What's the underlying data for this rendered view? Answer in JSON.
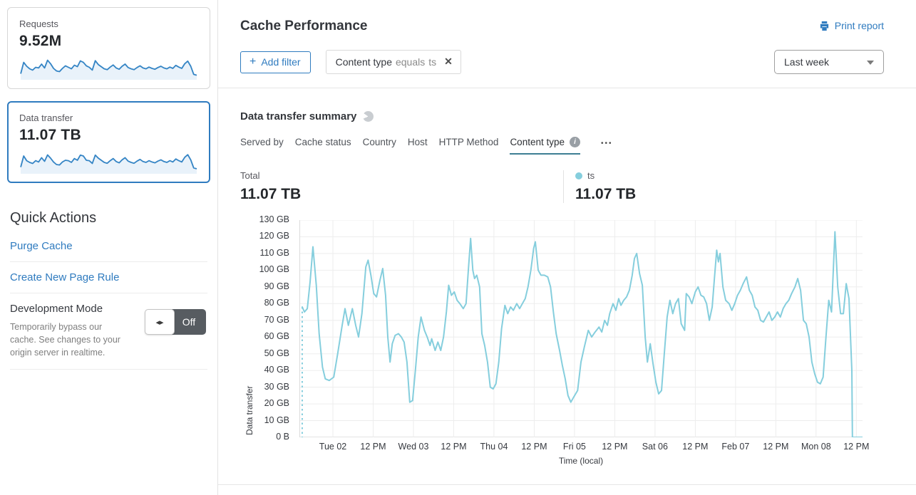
{
  "colors": {
    "accent": "#2f7bbf",
    "chart_line": "#85cedd",
    "spark_line": "#3585c5",
    "spark_fill": "#e9f2fa",
    "card_selected_border": "#2f7bbf",
    "tab_underline": "#3d7e93",
    "toggle_off_bg": "#575c61",
    "grid_line": "#ededed",
    "axis_line": "#c9c9c9"
  },
  "icons": {
    "close": "✕",
    "plus": "+",
    "toggle_arrows": "◂▸",
    "info": "i"
  },
  "sidebar": {
    "cards": [
      {
        "label": "Requests",
        "value": "9.52M",
        "selected": false,
        "spark": [
          25,
          78,
          60,
          48,
          42,
          55,
          52,
          70,
          52,
          88,
          72,
          50,
          38,
          35,
          50,
          62,
          55,
          48,
          65,
          58,
          85,
          78,
          62,
          55,
          42,
          86,
          68,
          58,
          48,
          44,
          56,
          66,
          52,
          46,
          60,
          70,
          54,
          48,
          44,
          54,
          62,
          52,
          48,
          56,
          50,
          46,
          54,
          60,
          52,
          48,
          56,
          50,
          64,
          56,
          50,
          72,
          84,
          60,
          22,
          18
        ]
      },
      {
        "label": "Data transfer",
        "value": "11.07 TB",
        "selected": true,
        "spark": [
          28,
          80,
          58,
          50,
          45,
          58,
          52,
          72,
          55,
          85,
          70,
          52,
          40,
          38,
          52,
          60,
          58,
          50,
          68,
          60,
          84,
          80,
          60,
          58,
          45,
          84,
          70,
          60,
          50,
          46,
          58,
          68,
          54,
          48,
          62,
          72,
          56,
          50,
          46,
          56,
          64,
          54,
          50,
          58,
          52,
          48,
          56,
          62,
          54,
          50,
          58,
          52,
          66,
          58,
          52,
          74,
          86,
          62,
          24,
          20
        ]
      }
    ],
    "quick_actions": {
      "title": "Quick Actions",
      "links": [
        {
          "label": "Purge Cache"
        },
        {
          "label": "Create New Page Rule"
        }
      ],
      "dev_mode": {
        "title": "Development Mode",
        "description": "Temporarily bypass our cache. See changes to your origin server in realtime.",
        "toggle_state": "Off"
      }
    }
  },
  "header": {
    "title": "Cache Performance",
    "print_label": "Print report"
  },
  "filters": {
    "add_label": "Add filter",
    "chip": {
      "field": "Content type",
      "operator": "equals",
      "value": "ts"
    },
    "time_range": "Last week"
  },
  "summary": {
    "title": "Data transfer summary",
    "tabs": [
      {
        "label": "Served by",
        "active": false
      },
      {
        "label": "Cache status",
        "active": false
      },
      {
        "label": "Country",
        "active": false
      },
      {
        "label": "Host",
        "active": false
      },
      {
        "label": "HTTP Method",
        "active": false
      },
      {
        "label": "Content type",
        "active": true,
        "info": true
      }
    ],
    "more_label": "•••",
    "totals": {
      "label": "Total",
      "value": "11.07 TB"
    },
    "legend": {
      "name": "ts",
      "value": "11.07 TB"
    }
  },
  "chart_data": {
    "type": "line",
    "title": "Data transfer summary",
    "ylabel": "Data transfer",
    "xlabel": "Time (local)",
    "y_unit": "GB",
    "y_max": 130,
    "grid": true,
    "y_ticks": [
      "130 GB",
      "120 GB",
      "110 GB",
      "100 GB",
      "90 GB",
      "80 GB",
      "70 GB",
      "60 GB",
      "50 GB",
      "40 GB",
      "30 GB",
      "20 GB",
      "10 GB",
      "0 B"
    ],
    "x_ticks": [
      "Tue 02",
      "12 PM",
      "Wed 03",
      "12 PM",
      "Thu 04",
      "12 PM",
      "Fri 05",
      "12 PM",
      "Sat 06",
      "12 PM",
      "Feb 07",
      "12 PM",
      "Mon 08",
      "12 PM"
    ],
    "x_tick_start_frac": 0.0595,
    "x_tick_step_frac": 0.0715,
    "start_dashed_drop": true,
    "series": [
      {
        "name": "ts",
        "color": "#85cedd",
        "points": [
          [
            0.005,
            78
          ],
          [
            0.009,
            75
          ],
          [
            0.014,
            77
          ],
          [
            0.019,
            93
          ],
          [
            0.024,
            114
          ],
          [
            0.03,
            91
          ],
          [
            0.035,
            62
          ],
          [
            0.041,
            42
          ],
          [
            0.046,
            35
          ],
          [
            0.053,
            34
          ],
          [
            0.061,
            36
          ],
          [
            0.068,
            50
          ],
          [
            0.076,
            67
          ],
          [
            0.081,
            77
          ],
          [
            0.087,
            67
          ],
          [
            0.094,
            77
          ],
          [
            0.1,
            67
          ],
          [
            0.105,
            60
          ],
          [
            0.111,
            74
          ],
          [
            0.118,
            102
          ],
          [
            0.122,
            106
          ],
          [
            0.127,
            97
          ],
          [
            0.132,
            86
          ],
          [
            0.137,
            84
          ],
          [
            0.143,
            94
          ],
          [
            0.148,
            101
          ],
          [
            0.153,
            85
          ],
          [
            0.157,
            60
          ],
          [
            0.161,
            45
          ],
          [
            0.165,
            56
          ],
          [
            0.17,
            61
          ],
          [
            0.176,
            62
          ],
          [
            0.181,
            60
          ],
          [
            0.186,
            57
          ],
          [
            0.191,
            45
          ],
          [
            0.196,
            21
          ],
          [
            0.201,
            22
          ],
          [
            0.206,
            40
          ],
          [
            0.211,
            60
          ],
          [
            0.216,
            72
          ],
          [
            0.222,
            64
          ],
          [
            0.227,
            60
          ],
          [
            0.232,
            55
          ],
          [
            0.235,
            59
          ],
          [
            0.241,
            52
          ],
          [
            0.246,
            57
          ],
          [
            0.251,
            52
          ],
          [
            0.256,
            60
          ],
          [
            0.261,
            75
          ],
          [
            0.265,
            91
          ],
          [
            0.27,
            85
          ],
          [
            0.275,
            87
          ],
          [
            0.28,
            82
          ],
          [
            0.285,
            80
          ],
          [
            0.291,
            77
          ],
          [
            0.296,
            80
          ],
          [
            0.3,
            100
          ],
          [
            0.304,
            119
          ],
          [
            0.308,
            100
          ],
          [
            0.311,
            95
          ],
          [
            0.315,
            97
          ],
          [
            0.32,
            90
          ],
          [
            0.324,
            62
          ],
          [
            0.329,
            55
          ],
          [
            0.334,
            45
          ],
          [
            0.339,
            30
          ],
          [
            0.344,
            29
          ],
          [
            0.349,
            32
          ],
          [
            0.354,
            45
          ],
          [
            0.359,
            65
          ],
          [
            0.365,
            79
          ],
          [
            0.37,
            74
          ],
          [
            0.375,
            78
          ],
          [
            0.38,
            76
          ],
          [
            0.386,
            80
          ],
          [
            0.391,
            77
          ],
          [
            0.396,
            80
          ],
          [
            0.401,
            83
          ],
          [
            0.406,
            90
          ],
          [
            0.411,
            100
          ],
          [
            0.416,
            113
          ],
          [
            0.419,
            117
          ],
          [
            0.424,
            100
          ],
          [
            0.429,
            97
          ],
          [
            0.435,
            97
          ],
          [
            0.441,
            96
          ],
          [
            0.446,
            90
          ],
          [
            0.451,
            75
          ],
          [
            0.456,
            62
          ],
          [
            0.462,
            52
          ],
          [
            0.467,
            43
          ],
          [
            0.472,
            35
          ],
          [
            0.477,
            25
          ],
          [
            0.482,
            21
          ],
          [
            0.487,
            24
          ],
          [
            0.494,
            28
          ],
          [
            0.5,
            45
          ],
          [
            0.506,
            54
          ],
          [
            0.513,
            64
          ],
          [
            0.519,
            60
          ],
          [
            0.525,
            63
          ],
          [
            0.532,
            66
          ],
          [
            0.537,
            63
          ],
          [
            0.542,
            70
          ],
          [
            0.547,
            67
          ],
          [
            0.551,
            74
          ],
          [
            0.557,
            80
          ],
          [
            0.562,
            76
          ],
          [
            0.567,
            83
          ],
          [
            0.571,
            79
          ],
          [
            0.576,
            82
          ],
          [
            0.581,
            84
          ],
          [
            0.586,
            88
          ],
          [
            0.591,
            97
          ],
          [
            0.595,
            107
          ],
          [
            0.599,
            110
          ],
          [
            0.604,
            98
          ],
          [
            0.609,
            91
          ],
          [
            0.614,
            60
          ],
          [
            0.618,
            45
          ],
          [
            0.623,
            56
          ],
          [
            0.628,
            44
          ],
          [
            0.633,
            33
          ],
          [
            0.638,
            26
          ],
          [
            0.643,
            28
          ],
          [
            0.648,
            50
          ],
          [
            0.653,
            72
          ],
          [
            0.658,
            82
          ],
          [
            0.663,
            74
          ],
          [
            0.668,
            80
          ],
          [
            0.673,
            83
          ],
          [
            0.678,
            68
          ],
          [
            0.684,
            64
          ],
          [
            0.687,
            86
          ],
          [
            0.692,
            84
          ],
          [
            0.697,
            80
          ],
          [
            0.703,
            87
          ],
          [
            0.708,
            90
          ],
          [
            0.713,
            85
          ],
          [
            0.718,
            84
          ],
          [
            0.723,
            80
          ],
          [
            0.728,
            70
          ],
          [
            0.733,
            78
          ],
          [
            0.737,
            95
          ],
          [
            0.741,
            112
          ],
          [
            0.744,
            105
          ],
          [
            0.747,
            110
          ],
          [
            0.752,
            90
          ],
          [
            0.757,
            82
          ],
          [
            0.763,
            80
          ],
          [
            0.768,
            76
          ],
          [
            0.773,
            80
          ],
          [
            0.778,
            85
          ],
          [
            0.783,
            88
          ],
          [
            0.788,
            92
          ],
          [
            0.794,
            96
          ],
          [
            0.799,
            88
          ],
          [
            0.804,
            85
          ],
          [
            0.809,
            78
          ],
          [
            0.814,
            76
          ],
          [
            0.819,
            70
          ],
          [
            0.824,
            69
          ],
          [
            0.829,
            72
          ],
          [
            0.834,
            75
          ],
          [
            0.839,
            70
          ],
          [
            0.844,
            72
          ],
          [
            0.849,
            75
          ],
          [
            0.854,
            72
          ],
          [
            0.859,
            77
          ],
          [
            0.864,
            80
          ],
          [
            0.869,
            82
          ],
          [
            0.874,
            86
          ],
          [
            0.88,
            90
          ],
          [
            0.885,
            95
          ],
          [
            0.89,
            88
          ],
          [
            0.895,
            70
          ],
          [
            0.9,
            68
          ],
          [
            0.905,
            60
          ],
          [
            0.91,
            45
          ],
          [
            0.915,
            38
          ],
          [
            0.92,
            33
          ],
          [
            0.925,
            32
          ],
          [
            0.93,
            36
          ],
          [
            0.935,
            60
          ],
          [
            0.94,
            82
          ],
          [
            0.945,
            75
          ],
          [
            0.951,
            123
          ],
          [
            0.956,
            90
          ],
          [
            0.961,
            74
          ],
          [
            0.966,
            74
          ],
          [
            0.971,
            92
          ],
          [
            0.976,
            83
          ],
          [
            0.981,
            40
          ],
          [
            0.982,
            0
          ],
          [
            1.0,
            0
          ]
        ]
      }
    ]
  }
}
